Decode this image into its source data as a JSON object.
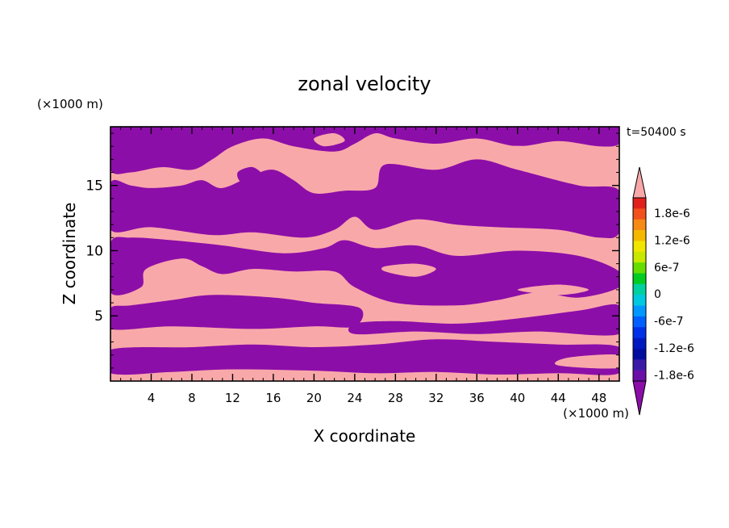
{
  "chart_data": {
    "type": "heatmap",
    "title": "zonal velocity",
    "xlabel": "X coordinate",
    "ylabel": "Z coordinate",
    "x_unit": "(×1000 m)",
    "z_unit": "(×1000 m)",
    "time_label": "t=50400 s",
    "xlim": [
      0,
      50
    ],
    "ylim": [
      0,
      19.5
    ],
    "x_ticks": [
      4,
      8,
      12,
      16,
      20,
      24,
      28,
      32,
      36,
      40,
      44,
      48
    ],
    "y_ticks": [
      5,
      10,
      15
    ],
    "colorbar": {
      "labels": [
        "1.8e-6",
        "1.2e-6",
        "6e-7",
        "0",
        "-6e-7",
        "-1.2e-6",
        "-1.8e-6"
      ],
      "colors": [
        "#e0211c",
        "#f2501c",
        "#f58a14",
        "#f5b800",
        "#f0e600",
        "#c8e800",
        "#66dd00",
        "#00cc22",
        "#00d0a0",
        "#00c8e0",
        "#0098ff",
        "#0060ff",
        "#0030e8",
        "#0018c0",
        "#000ea0",
        "#3b1aa8",
        "#6a10a8"
      ],
      "over_color": "#f9a8aa",
      "under_color": "#8c0ea8"
    },
    "field_colors": {
      "positive": "#f9a8aa",
      "negative": "#8c0ea8"
    },
    "negative_regions": [
      [
        [
          0,
          0.6
        ],
        [
          6,
          0.7
        ],
        [
          12,
          0.9
        ],
        [
          20,
          0.8
        ],
        [
          26,
          0.6
        ],
        [
          32,
          0.7
        ],
        [
          38,
          0.5
        ],
        [
          44,
          0.6
        ],
        [
          50,
          0.6
        ],
        [
          50,
          2.6
        ],
        [
          44,
          2.8
        ],
        [
          38,
          3.0
        ],
        [
          32,
          3.2
        ],
        [
          26,
          2.8
        ],
        [
          20,
          2.6
        ],
        [
          14,
          2.8
        ],
        [
          8,
          2.6
        ],
        [
          0,
          2.4
        ]
      ],
      [
        [
          24,
          3.6
        ],
        [
          30,
          3.8
        ],
        [
          36,
          3.6
        ],
        [
          42,
          3.8
        ],
        [
          50,
          3.6
        ],
        [
          50,
          5.8
        ],
        [
          46,
          5.4
        ],
        [
          40,
          4.8
        ],
        [
          34,
          4.4
        ],
        [
          28,
          4.6
        ],
        [
          24,
          4.4
        ]
      ],
      [
        [
          0,
          4.0
        ],
        [
          6,
          4.2
        ],
        [
          14,
          4.0
        ],
        [
          20,
          4.2
        ],
        [
          24,
          4.2
        ],
        [
          24.5,
          5.6
        ],
        [
          20,
          6.0
        ],
        [
          16,
          6.4
        ],
        [
          10,
          6.6
        ],
        [
          6,
          6.2
        ],
        [
          2,
          5.8
        ],
        [
          0,
          5.6
        ]
      ],
      [
        [
          0,
          6.8
        ],
        [
          3,
          7.2
        ],
        [
          3.5,
          8.6
        ],
        [
          7,
          9.4
        ],
        [
          9,
          8.8
        ],
        [
          11,
          8.2
        ],
        [
          14,
          8.6
        ],
        [
          18,
          8.4
        ],
        [
          22,
          8.4
        ],
        [
          24,
          7.2
        ],
        [
          28,
          6.0
        ],
        [
          34,
          5.8
        ],
        [
          38,
          6.2
        ],
        [
          42,
          6.8
        ],
        [
          46,
          6.4
        ],
        [
          50,
          7.2
        ],
        [
          50,
          8.4
        ],
        [
          46,
          9.6
        ],
        [
          40,
          10.0
        ],
        [
          34,
          9.6
        ],
        [
          30,
          10.4
        ],
        [
          26,
          10.2
        ],
        [
          23,
          10.8
        ],
        [
          21,
          10.2
        ],
        [
          17,
          9.8
        ],
        [
          11,
          10.4
        ],
        [
          6,
          10.8
        ],
        [
          2,
          11.0
        ],
        [
          0,
          10.6
        ]
      ],
      [
        [
          0,
          11.6
        ],
        [
          4,
          11.8
        ],
        [
          10,
          11.2
        ],
        [
          14,
          11.4
        ],
        [
          19,
          11.0
        ],
        [
          22,
          11.6
        ],
        [
          24,
          12.6
        ],
        [
          26,
          11.6
        ],
        [
          30,
          12.4
        ],
        [
          34,
          12.0
        ],
        [
          38,
          11.8
        ],
        [
          44,
          11.6
        ],
        [
          48,
          11.0
        ],
        [
          50,
          11.4
        ],
        [
          50,
          14.6
        ],
        [
          46,
          15.0
        ],
        [
          40,
          16.2
        ],
        [
          36,
          17.0
        ],
        [
          32,
          16.2
        ],
        [
          27,
          16.6
        ],
        [
          26,
          14.8
        ],
        [
          23,
          14.6
        ],
        [
          20,
          14.4
        ],
        [
          18,
          15.4
        ],
        [
          16,
          16.2
        ],
        [
          14,
          15.8
        ],
        [
          11,
          14.8
        ],
        [
          9,
          15.4
        ],
        [
          7,
          15.0
        ],
        [
          4,
          14.8
        ],
        [
          2,
          15.0
        ],
        [
          0,
          15.2
        ]
      ],
      [
        [
          0,
          16.2
        ],
        [
          2,
          16.0
        ],
        [
          5,
          16.4
        ],
        [
          8,
          16.2
        ],
        [
          10,
          17.0
        ],
        [
          12,
          18.0
        ],
        [
          15,
          18.6
        ],
        [
          18,
          18.0
        ],
        [
          22,
          17.6
        ],
        [
          24,
          18.2
        ],
        [
          26,
          19.0
        ],
        [
          28,
          18.6
        ],
        [
          32,
          18.2
        ],
        [
          36,
          18.6
        ],
        [
          40,
          18.0
        ],
        [
          44,
          18.4
        ],
        [
          48,
          18.0
        ],
        [
          50,
          18.2
        ],
        [
          50,
          19.5
        ],
        [
          0,
          19.5
        ]
      ]
    ],
    "positive_regions": [
      [
        [
          44,
          1.2
        ],
        [
          50,
          1.0
        ],
        [
          50,
          2.0
        ],
        [
          45,
          1.8
        ]
      ],
      [
        [
          40,
          7.0
        ],
        [
          44,
          6.6
        ],
        [
          47,
          7.0
        ],
        [
          44,
          7.4
        ]
      ],
      [
        [
          38,
          17.2
        ],
        [
          42,
          17.0
        ],
        [
          43,
          17.8
        ],
        [
          39,
          18.0
        ]
      ],
      [
        [
          21,
          18.0
        ],
        [
          23,
          18.4
        ],
        [
          22,
          19.0
        ],
        [
          20,
          18.6
        ]
      ],
      [
        [
          27,
          8.4
        ],
        [
          30,
          8.0
        ],
        [
          32,
          8.6
        ],
        [
          30,
          9.0
        ],
        [
          27,
          8.8
        ]
      ]
    ],
    "extra_negative_regions": [
      [
        [
          13,
          15.2
        ],
        [
          15,
          15.6
        ],
        [
          14,
          16.4
        ],
        [
          12.5,
          16.0
        ]
      ],
      [
        [
          13,
          4.6
        ],
        [
          15,
          4.5
        ],
        [
          15,
          5.2
        ],
        [
          13,
          5.2
        ]
      ]
    ]
  }
}
